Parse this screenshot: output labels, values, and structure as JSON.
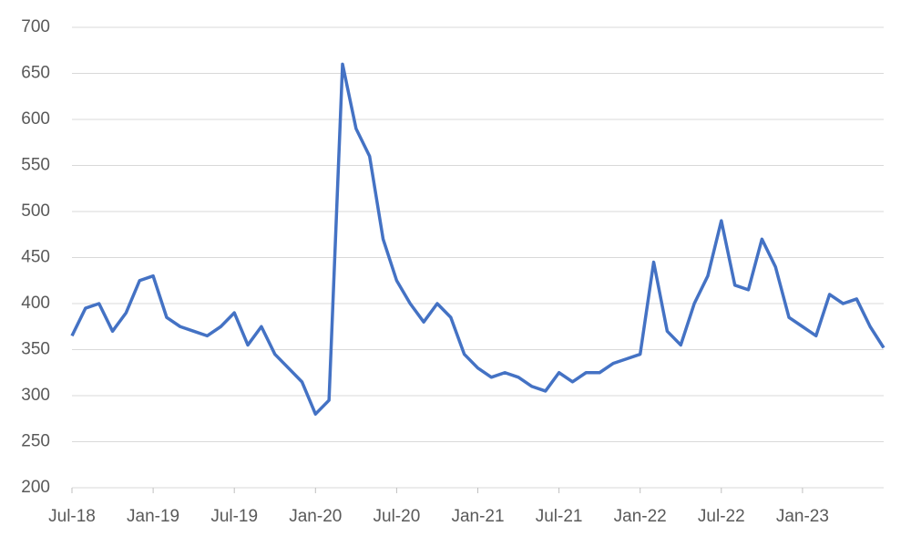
{
  "chart_data": {
    "type": "line",
    "x": [
      "2018-07",
      "2018-08",
      "2018-09",
      "2018-10",
      "2018-11",
      "2018-12",
      "2019-01",
      "2019-02",
      "2019-03",
      "2019-04",
      "2019-05",
      "2019-06",
      "2019-07",
      "2019-08",
      "2019-09",
      "2019-10",
      "2019-11",
      "2019-12",
      "2020-01",
      "2020-02",
      "2020-03",
      "2020-04",
      "2020-05",
      "2020-06",
      "2020-07",
      "2020-08",
      "2020-09",
      "2020-10",
      "2020-11",
      "2020-12",
      "2021-01",
      "2021-02",
      "2021-03",
      "2021-04",
      "2021-05",
      "2021-06",
      "2021-07",
      "2021-08",
      "2021-09",
      "2021-10",
      "2021-11",
      "2021-12",
      "2022-01",
      "2022-02",
      "2022-03",
      "2022-04",
      "2022-05",
      "2022-06",
      "2022-07",
      "2022-08",
      "2022-09",
      "2022-10",
      "2022-11",
      "2022-12",
      "2023-01",
      "2023-02",
      "2023-03",
      "2023-04",
      "2023-05",
      "2023-06",
      "2023-07"
    ],
    "series": [
      {
        "color": "#4472c4",
        "values": [
          365,
          395,
          400,
          370,
          390,
          425,
          430,
          385,
          375,
          370,
          365,
          375,
          390,
          355,
          375,
          345,
          330,
          315,
          280,
          295,
          660,
          590,
          560,
          470,
          425,
          400,
          380,
          400,
          385,
          345,
          330,
          320,
          325,
          320,
          310,
          305,
          325,
          315,
          325,
          325,
          335,
          340,
          345,
          445,
          370,
          355,
          400,
          430,
          490,
          420,
          415,
          470,
          440,
          385,
          375,
          365,
          410,
          400,
          405,
          375,
          352
        ]
      }
    ],
    "xlim": [
      "2018-07",
      "2023-07"
    ],
    "xticks": [
      {
        "value": "2018-07",
        "label": "Jul-18"
      },
      {
        "value": "2019-01",
        "label": "Jan-19"
      },
      {
        "value": "2019-07",
        "label": "Jul-19"
      },
      {
        "value": "2020-01",
        "label": "Jan-20"
      },
      {
        "value": "2020-07",
        "label": "Jul-20"
      },
      {
        "value": "2021-01",
        "label": "Jan-21"
      },
      {
        "value": "2021-07",
        "label": "Jul-21"
      },
      {
        "value": "2022-01",
        "label": "Jan-22"
      },
      {
        "value": "2022-07",
        "label": "Jul-22"
      },
      {
        "value": "2023-01",
        "label": "Jan-23"
      }
    ],
    "ylim": [
      200,
      700
    ],
    "yticks": [
      200,
      250,
      300,
      350,
      400,
      450,
      500,
      550,
      600,
      650,
      700
    ],
    "grid": true
  }
}
